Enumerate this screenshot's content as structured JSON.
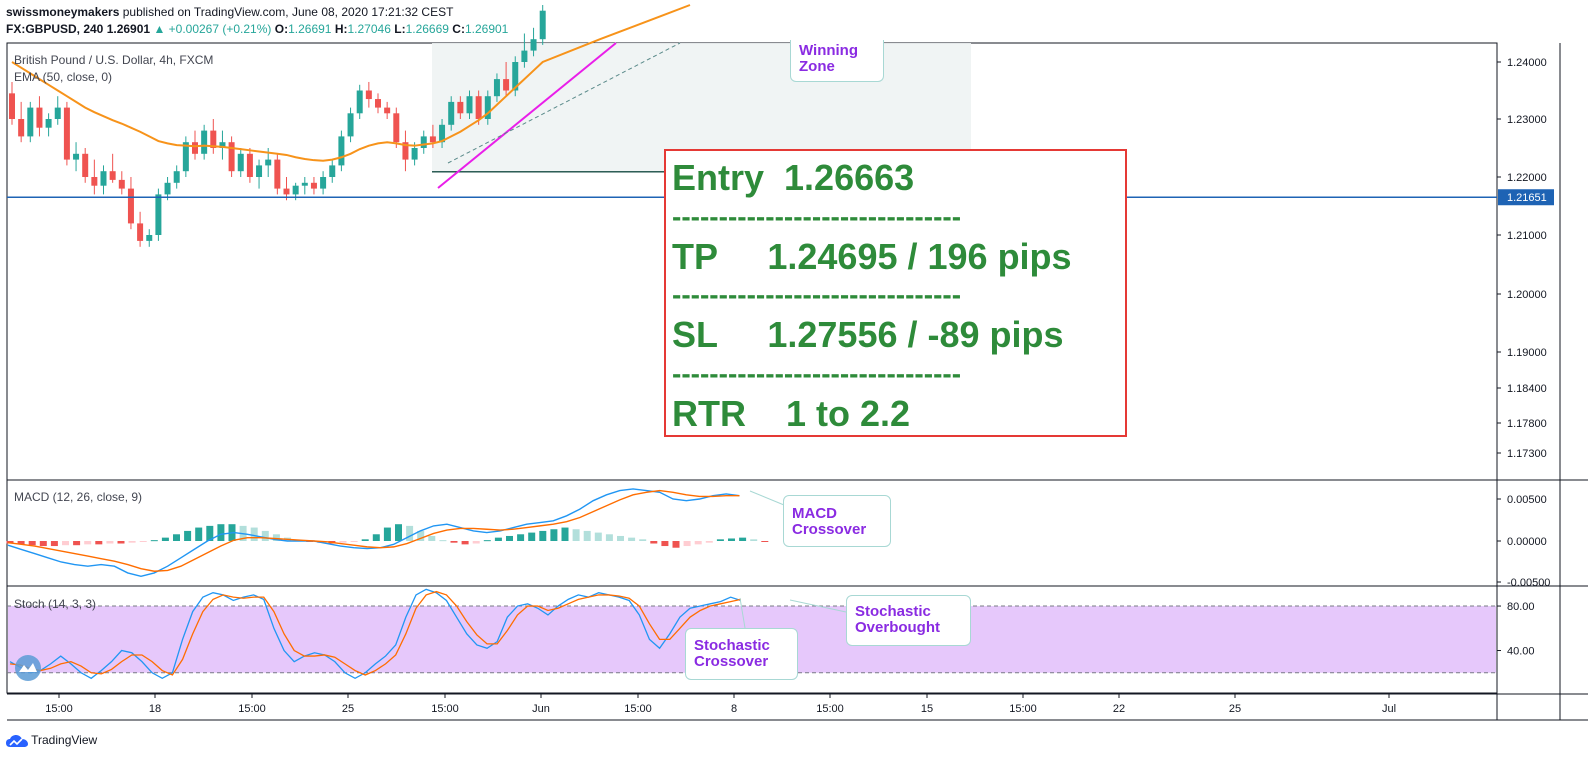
{
  "header": {
    "line1": {
      "author": "swissmoneymakers",
      "text": " published on TradingView.com, June 08, 2020 17:21:32 CEST"
    },
    "line2": {
      "symbol": "FX:GBPUSD, 240",
      "price": "1.26901",
      "change": "▲ +0.00267 (+0.21%)",
      "o_label": "O:",
      "o": "1.26691",
      "h_label": "H:",
      "h": "1.27046",
      "l_label": "L:",
      "l": "1.26669",
      "c_label": "C:",
      "c": "1.26901"
    }
  },
  "legend": {
    "title": "British Pound / U.S. Dollar, 4h, FXCM",
    "ema": "EMA (50, close, 0)",
    "macd": "MACD (12, 26, close, 9)",
    "stoch": "Stoch (14, 3, 3)"
  },
  "trade_box": {
    "entry": "Entry  1.26663",
    "tp": "TP     1.24695 / 196 pips",
    "sl": "SL     1.27556 / -89 pips",
    "rtr": "RTR    1 to 2.2",
    "separator": "-------------------------------"
  },
  "callouts": {
    "winning_zone": [
      "Winning",
      "Zone"
    ],
    "macd": [
      "MACD",
      "Crossover"
    ],
    "stoch_cross": [
      "Stochastic",
      "Crossover"
    ],
    "stoch_ob": [
      "Stochastic",
      "Overbought"
    ]
  },
  "footer": {
    "brand": "TradingView"
  },
  "colors": {
    "bull": "#26a69a",
    "bear": "#ef5350",
    "ema": "#f7931a",
    "hline": "#1e63b4",
    "macd": "#2196f3",
    "signal": "#ff6d00",
    "trend": "#e91ee9",
    "stoch_band": "#e6c8fb"
  },
  "chart_data": [
    {
      "type": "candlestick",
      "y_ticks": [
        "1.24000",
        "1.23000",
        "1.22000",
        "1.21000",
        "1.20000",
        "1.19000",
        "1.18400",
        "1.17800",
        "1.17300"
      ],
      "x_ticks": [
        "15:00",
        "18",
        "15:00",
        "25",
        "15:00",
        "Jun",
        "15:00",
        "8",
        "15:00",
        "15",
        "15:00",
        "22",
        "25",
        "Jul"
      ],
      "price_label": "1.21651",
      "hline": 1.21651,
      "entry_line": 1.2209,
      "ohlc": [
        [
          1.2345,
          1.2365,
          1.229,
          1.23
        ],
        [
          1.23,
          1.233,
          1.226,
          1.227
        ],
        [
          1.227,
          1.233,
          1.226,
          1.232
        ],
        [
          1.232,
          1.234,
          1.227,
          1.2285
        ],
        [
          1.2285,
          1.231,
          1.227,
          1.23
        ],
        [
          1.23,
          1.234,
          1.229,
          1.232
        ],
        [
          1.232,
          1.233,
          1.222,
          1.223
        ],
        [
          1.223,
          1.226,
          1.221,
          1.224
        ],
        [
          1.224,
          1.225,
          1.219,
          1.22
        ],
        [
          1.22,
          1.223,
          1.217,
          1.2185
        ],
        [
          1.2185,
          1.222,
          1.217,
          1.221
        ],
        [
          1.221,
          1.224,
          1.219,
          1.2195
        ],
        [
          1.2195,
          1.221,
          1.217,
          1.218
        ],
        [
          1.218,
          1.22,
          1.211,
          1.212
        ],
        [
          1.212,
          1.214,
          1.208,
          1.209
        ],
        [
          1.209,
          1.211,
          1.208,
          1.21
        ],
        [
          1.21,
          1.218,
          1.209,
          1.217
        ],
        [
          1.217,
          1.22,
          1.216,
          1.219
        ],
        [
          1.219,
          1.222,
          1.218,
          1.221
        ],
        [
          1.221,
          1.227,
          1.22,
          1.226
        ],
        [
          1.226,
          1.228,
          1.223,
          1.224
        ],
        [
          1.224,
          1.229,
          1.223,
          1.228
        ],
        [
          1.228,
          1.23,
          1.224,
          1.225
        ],
        [
          1.225,
          1.228,
          1.223,
          1.226
        ],
        [
          1.226,
          1.227,
          1.22,
          1.221
        ],
        [
          1.221,
          1.225,
          1.22,
          1.224
        ],
        [
          1.224,
          1.225,
          1.219,
          1.22
        ],
        [
          1.22,
          1.223,
          1.218,
          1.222
        ],
        [
          1.222,
          1.225,
          1.22,
          1.223
        ],
        [
          1.223,
          1.224,
          1.217,
          1.218
        ],
        [
          1.218,
          1.22,
          1.216,
          1.217
        ],
        [
          1.217,
          1.219,
          1.216,
          1.2185
        ],
        [
          1.2185,
          1.22,
          1.217,
          1.219
        ],
        [
          1.219,
          1.22,
          1.217,
          1.218
        ],
        [
          1.218,
          1.221,
          1.217,
          1.22
        ],
        [
          1.22,
          1.223,
          1.219,
          1.222
        ],
        [
          1.222,
          1.228,
          1.221,
          1.227
        ],
        [
          1.227,
          1.232,
          1.226,
          1.231
        ],
        [
          1.231,
          1.236,
          1.23,
          1.235
        ],
        [
          1.235,
          1.2365,
          1.232,
          1.2335
        ],
        [
          1.2335,
          1.2345,
          1.231,
          1.232
        ],
        [
          1.232,
          1.233,
          1.23,
          1.231
        ],
        [
          1.231,
          1.232,
          1.225,
          1.226
        ],
        [
          1.226,
          1.228,
          1.221,
          1.223
        ],
        [
          1.223,
          1.226,
          1.222,
          1.225
        ],
        [
          1.225,
          1.228,
          1.224,
          1.227
        ],
        [
          1.227,
          1.229,
          1.225,
          1.226
        ],
        [
          1.226,
          1.23,
          1.225,
          1.229
        ],
        [
          1.229,
          1.234,
          1.228,
          1.233
        ],
        [
          1.233,
          1.234,
          1.23,
          1.231
        ],
        [
          1.231,
          1.235,
          1.23,
          1.234
        ],
        [
          1.234,
          1.235,
          1.229,
          1.23
        ],
        [
          1.23,
          1.235,
          1.229,
          1.234
        ],
        [
          1.234,
          1.238,
          1.233,
          1.237
        ],
        [
          1.237,
          1.24,
          1.234,
          1.235
        ],
        [
          1.235,
          1.241,
          1.234,
          1.24
        ],
        [
          1.24,
          1.245,
          1.239,
          1.242
        ],
        [
          1.242,
          1.246,
          1.241,
          1.244
        ],
        [
          1.244,
          1.25,
          1.243,
          1.249
        ]
      ],
      "ema": [
        1.24,
        1.239,
        1.238,
        1.237,
        1.236,
        1.235,
        1.234,
        1.233,
        1.232,
        1.2312,
        1.2305,
        1.2298,
        1.2292,
        1.2285,
        1.2278,
        1.227,
        1.2262,
        1.2258,
        1.2255,
        1.2254,
        1.2253,
        1.2254,
        1.2253,
        1.2252,
        1.225,
        1.2248,
        1.2246,
        1.2244,
        1.2242,
        1.224,
        1.2238,
        1.2234,
        1.2231,
        1.2229,
        1.2228,
        1.223,
        1.2234,
        1.224,
        1.2248,
        1.2254,
        1.2258,
        1.226,
        1.2258,
        1.2255,
        1.2254,
        1.2256,
        1.2258,
        1.2262,
        1.227,
        1.2278,
        1.2288,
        1.2298,
        1.231,
        1.2325,
        1.234,
        1.2355,
        1.237,
        1.2385,
        1.24
      ]
    },
    {
      "type": "macd",
      "y_ticks": [
        "0.00500",
        "0.00000",
        "-0.00500"
      ],
      "hist": [
        -0.0003,
        -0.0004,
        -0.0005,
        -0.0006,
        -0.0006,
        -0.0005,
        -0.0005,
        -0.0004,
        -0.0004,
        -0.0003,
        -0.0003,
        -0.0002,
        -0.0001,
        0.0001,
        0.0004,
        0.0008,
        0.0012,
        0.0016,
        0.0018,
        0.002,
        0.002,
        0.0018,
        0.0016,
        0.0012,
        0.0008,
        0.0004,
        0.0001,
        -0.0001,
        -0.0002,
        -0.0003,
        -0.0002,
        -0.0001,
        0.0002,
        0.0008,
        0.0016,
        0.002,
        0.0018,
        0.0012,
        0.0006,
        0.0001,
        -0.0002,
        -0.0004,
        -0.0003,
        0.0001,
        0.0004,
        0.0006,
        0.0008,
        0.001,
        0.0012,
        0.0014,
        0.0016,
        0.0014,
        0.0012,
        0.001,
        0.0008,
        0.0006,
        0.0004,
        0.0002,
        -0.0003,
        -0.0006,
        -0.0008,
        -0.0006,
        -0.0004,
        -0.0002,
        0.0002,
        0.0003,
        0.0004,
        0.0002,
        -0.0001
      ],
      "macd_line": [
        -0.0005,
        -0.001,
        -0.0015,
        -0.002,
        -0.0025,
        -0.0028,
        -0.003,
        -0.0028,
        -0.003,
        -0.0038,
        -0.0042,
        -0.0038,
        -0.003,
        -0.002,
        -0.001,
        0.0,
        0.0008,
        0.001,
        0.0008,
        0.0005,
        0.0002,
        0.0,
        0.0,
        0.0,
        -0.0003,
        -0.0006,
        -0.0008,
        -0.0009,
        -0.0008,
        -0.0004,
        0.0004,
        0.0012,
        0.0018,
        0.002,
        0.0016,
        0.0012,
        0.001,
        0.0012,
        0.0016,
        0.002,
        0.0022,
        0.0024,
        0.003,
        0.0038,
        0.0048,
        0.0055,
        0.006,
        0.0062,
        0.006,
        0.0058,
        0.005,
        0.0048,
        0.005,
        0.0054,
        0.0056,
        0.0054
      ],
      "signal_line": [
        -0.0002,
        -0.0004,
        -0.0006,
        -0.0009,
        -0.0012,
        -0.0015,
        -0.0018,
        -0.0021,
        -0.0024,
        -0.0028,
        -0.0033,
        -0.0036,
        -0.0035,
        -0.003,
        -0.0022,
        -0.0014,
        -0.0006,
        0.0001,
        0.0004,
        0.0004,
        0.0003,
        0.0002,
        0.0001,
        0.0,
        -0.0001,
        -0.0003,
        -0.0005,
        -0.0007,
        -0.0008,
        -0.0007,
        -0.0003,
        0.0003,
        0.0009,
        0.0013,
        0.0015,
        0.0015,
        0.0014,
        0.0013,
        0.0014,
        0.0016,
        0.0018,
        0.002,
        0.0023,
        0.0028,
        0.0035,
        0.0042,
        0.0049,
        0.0055,
        0.0058,
        0.006,
        0.0058,
        0.0055,
        0.0053,
        0.0053,
        0.0054,
        0.0054
      ]
    },
    {
      "type": "line",
      "y_ticks": [
        "80.00",
        "40.00"
      ],
      "band": [
        20,
        80
      ],
      "k": [
        30,
        25,
        20,
        22,
        28,
        35,
        28,
        20,
        15,
        22,
        30,
        40,
        38,
        30,
        20,
        15,
        20,
        50,
        75,
        88,
        92,
        90,
        85,
        88,
        90,
        86,
        60,
        40,
        30,
        35,
        38,
        36,
        30,
        20,
        15,
        20,
        28,
        35,
        45,
        70,
        90,
        95,
        92,
        85,
        70,
        55,
        45,
        42,
        48,
        70,
        80,
        82,
        78,
        72,
        80,
        86,
        90,
        88,
        92,
        90,
        88,
        85,
        72,
        50,
        42,
        55,
        70,
        78,
        80,
        82,
        84,
        88,
        85
      ],
      "d": [
        28,
        27,
        24,
        22,
        24,
        28,
        30,
        26,
        20,
        19,
        23,
        30,
        36,
        36,
        30,
        22,
        18,
        32,
        55,
        75,
        86,
        90,
        88,
        87,
        88,
        88,
        75,
        55,
        40,
        35,
        35,
        36,
        34,
        28,
        22,
        18,
        22,
        28,
        36,
        55,
        78,
        90,
        93,
        90,
        80,
        66,
        54,
        46,
        46,
        58,
        72,
        80,
        80,
        76,
        78,
        82,
        86,
        88,
        90,
        90,
        89,
        87,
        80,
        64,
        50,
        50,
        60,
        70,
        76,
        80,
        82,
        84,
        86
      ]
    }
  ]
}
